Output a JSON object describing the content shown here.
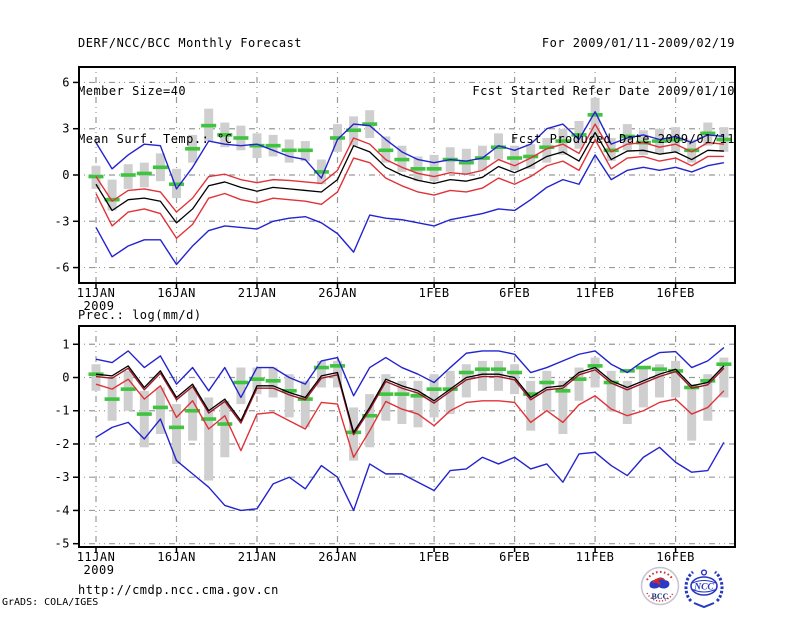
{
  "header": {
    "title": "DERF/NCC/BCC Monthly Forecast",
    "member_size": "Member Size=40",
    "valid_range": "For 2009/01/11-2009/02/19",
    "refer_date": "Fcst Started Refer Date 2009/01/10",
    "produced_date": "Fcst Produced Date 2009/01/11"
  },
  "footer": {
    "url": "http://cmdp.ncc.cma.gov.cn",
    "credit": "GrADS: COLA/IGES",
    "bcc_label": "BCC",
    "ncc_label": "NCC"
  },
  "colors": {
    "blue": "#2323cf",
    "red": "#e03338",
    "maroon": "#a01828",
    "black": "#000000",
    "green": "#3fc43f",
    "bar": "#cfcfcf",
    "grid": "#999999",
    "frame": "#000000"
  },
  "chart_data": [
    {
      "type": "line",
      "title": "Mean Surf. Temp.: °C",
      "x_start_date": "11JAN2009",
      "days": 40,
      "ylim": [
        -7,
        7
      ],
      "grid": true,
      "year_label": "2009",
      "y_ticks": [
        {
          "v": 6,
          "label": "6"
        },
        {
          "v": 3,
          "label": "3"
        },
        {
          "v": 0,
          "label": "0"
        },
        {
          "v": -3,
          "label": "-3"
        },
        {
          "v": -6,
          "label": "-6"
        }
      ],
      "x_ticks": [
        {
          "day": 1,
          "label": "11JAN"
        },
        {
          "day": 6,
          "label": "16JAN"
        },
        {
          "day": 11,
          "label": "21JAN"
        },
        {
          "day": 16,
          "label": "26JAN"
        },
        {
          "day": 22,
          "label": "1FEB"
        },
        {
          "day": 27,
          "label": "6FEB"
        },
        {
          "day": 32,
          "label": "11FEB"
        },
        {
          "day": 37,
          "label": "16FEB"
        }
      ],
      "series": [
        {
          "name": "member-spread-bar",
          "type": "bar",
          "color": "bar",
          "low": [
            -0.9,
            -2.3,
            -0.9,
            -0.8,
            -0.4,
            -1.5,
            0.8,
            2.2,
            1.8,
            1.6,
            1.1,
            1.2,
            0.8,
            0.9,
            -0.6,
            1.5,
            1.9,
            2.4,
            0.8,
            0.2,
            -0.4,
            -0.4,
            0.2,
            0.0,
            0.3,
            1.0,
            0.3,
            0.4,
            0.8,
            1.3,
            1.7,
            2.4,
            0.9,
            1.6,
            1.3,
            1.4,
            1.5,
            0.8,
            1.9,
            1.5
          ],
          "high": [
            0.6,
            -0.3,
            0.7,
            0.8,
            1.4,
            0.4,
            2.6,
            4.3,
            3.4,
            3.2,
            2.7,
            2.6,
            2.3,
            2.2,
            1.0,
            3.3,
            3.8,
            4.2,
            2.5,
            1.9,
            1.2,
            1.3,
            1.8,
            1.7,
            1.9,
            2.7,
            1.9,
            2.0,
            2.4,
            3.0,
            3.5,
            5.0,
            2.4,
            3.3,
            2.9,
            3.0,
            3.1,
            2.3,
            3.4,
            3.1
          ]
        },
        {
          "name": "observation",
          "type": "dash",
          "color": "green",
          "values": [
            -0.1,
            -1.6,
            0.0,
            0.1,
            0.5,
            -0.6,
            1.7,
            3.2,
            2.6,
            2.4,
            1.9,
            1.9,
            1.6,
            1.6,
            0.2,
            2.4,
            2.9,
            3.3,
            1.6,
            1.0,
            0.4,
            0.4,
            1.0,
            0.8,
            1.1,
            1.8,
            1.1,
            1.2,
            1.8,
            2.2,
            2.6,
            3.9,
            1.6,
            2.5,
            2.1,
            2.2,
            2.3,
            1.6,
            2.7,
            2.3
          ]
        },
        {
          "name": "ensemble-max",
          "type": "line",
          "color": "blue",
          "values": [
            2.1,
            0.4,
            1.3,
            2.0,
            1.9,
            -0.9,
            0.5,
            2.2,
            2.0,
            1.9,
            2.0,
            1.6,
            1.2,
            1.0,
            -0.2,
            2.3,
            3.3,
            3.2,
            2.3,
            1.5,
            1.0,
            0.8,
            1.0,
            0.9,
            1.1,
            1.9,
            1.6,
            2.0,
            3.0,
            3.3,
            2.3,
            4.1,
            2.0,
            2.4,
            2.6,
            2.3,
            2.5,
            2.1,
            2.6,
            2.5
          ]
        },
        {
          "name": "ensemble-min",
          "type": "line",
          "color": "blue",
          "values": [
            -3.4,
            -5.3,
            -4.6,
            -4.2,
            -4.2,
            -5.8,
            -4.6,
            -3.6,
            -3.3,
            -3.4,
            -3.5,
            -3.0,
            -2.8,
            -2.7,
            -3.1,
            -3.8,
            -5.0,
            -2.6,
            -2.8,
            -2.9,
            -3.1,
            -3.3,
            -2.9,
            -2.7,
            -2.5,
            -2.2,
            -2.3,
            -1.6,
            -0.8,
            -0.3,
            -0.6,
            1.3,
            -0.3,
            0.3,
            0.5,
            0.3,
            0.5,
            0.2,
            0.6,
            0.8
          ]
        },
        {
          "name": "upper-spread",
          "type": "line",
          "color": "red",
          "values": [
            -0.1,
            -1.7,
            -1.0,
            -0.9,
            -1.1,
            -2.4,
            -1.5,
            -0.1,
            0.05,
            -0.3,
            -0.5,
            -0.3,
            -0.35,
            -0.45,
            -0.55,
            0.3,
            2.4,
            2.0,
            1.0,
            0.5,
            0.1,
            -0.1,
            0.15,
            0.05,
            0.3,
            1.0,
            0.6,
            1.1,
            1.7,
            2.0,
            1.4,
            3.3,
            1.5,
            2.0,
            2.1,
            1.8,
            2.0,
            1.5,
            2.1,
            2.0
          ]
        },
        {
          "name": "lower-spread",
          "type": "line",
          "color": "red",
          "values": [
            -1.2,
            -3.3,
            -2.4,
            -2.2,
            -2.5,
            -4.1,
            -3.2,
            -1.5,
            -1.2,
            -1.6,
            -1.8,
            -1.5,
            -1.6,
            -1.7,
            -1.9,
            -1.1,
            1.1,
            0.8,
            -0.2,
            -0.7,
            -1.1,
            -1.3,
            -1.0,
            -1.1,
            -0.85,
            -0.2,
            -0.6,
            -0.1,
            0.6,
            0.9,
            0.3,
            2.3,
            0.4,
            1.1,
            1.2,
            0.9,
            1.1,
            0.6,
            1.2,
            1.2
          ]
        },
        {
          "name": "ensemble-mean",
          "type": "line",
          "color": "black",
          "values": [
            -0.6,
            -2.3,
            -1.6,
            -1.5,
            -1.7,
            -3.1,
            -2.2,
            -0.7,
            -0.45,
            -0.8,
            -1.05,
            -0.8,
            -0.9,
            -1.0,
            -1.1,
            -0.3,
            1.9,
            1.5,
            0.5,
            0.0,
            -0.35,
            -0.55,
            -0.3,
            -0.4,
            -0.15,
            0.55,
            0.15,
            0.6,
            1.2,
            1.5,
            0.9,
            2.75,
            1.0,
            1.55,
            1.6,
            1.35,
            1.5,
            1.0,
            1.6,
            1.55
          ]
        }
      ]
    },
    {
      "type": "line",
      "title": "Prec.: log(mm/d)",
      "x_start_date": "11JAN2009",
      "days": 40,
      "ylim": [
        -5.1,
        1.55
      ],
      "grid": true,
      "year_label": "2009",
      "y_ticks": [
        {
          "v": 1,
          "label": "1"
        },
        {
          "v": 0,
          "label": "0"
        },
        {
          "v": -1,
          "label": "-1"
        },
        {
          "v": -2,
          "label": "-2"
        },
        {
          "v": -3,
          "label": "-3"
        },
        {
          "v": -4,
          "label": "-4"
        },
        {
          "v": -5,
          "label": "-5"
        }
      ],
      "x_ticks": [
        {
          "day": 1,
          "label": "11JAN"
        },
        {
          "day": 6,
          "label": "16JAN"
        },
        {
          "day": 11,
          "label": "21JAN"
        },
        {
          "day": 16,
          "label": "26JAN"
        },
        {
          "day": 22,
          "label": "1FEB"
        },
        {
          "day": 27,
          "label": "6FEB"
        },
        {
          "day": 32,
          "label": "11FEB"
        },
        {
          "day": 37,
          "label": "16FEB"
        }
      ],
      "series": [
        {
          "name": "member-spread-bar",
          "type": "bar",
          "color": "bar",
          "low": [
            -0.4,
            -1.3,
            -1.0,
            -2.1,
            -1.7,
            -2.6,
            -1.9,
            -3.1,
            -2.4,
            -0.8,
            -0.5,
            -0.6,
            -1.2,
            -1.5,
            -0.3,
            -0.3,
            -2.5,
            -2.1,
            -1.3,
            -1.4,
            -1.5,
            -1.2,
            -1.1,
            -0.6,
            -0.4,
            -0.4,
            -0.5,
            -1.6,
            -1.0,
            -1.7,
            -0.7,
            -0.3,
            -1.0,
            -1.4,
            -0.9,
            -0.6,
            -0.6,
            -1.9,
            -1.3,
            -0.6
          ],
          "high": [
            0.4,
            0.0,
            0.2,
            -0.4,
            -0.3,
            -0.8,
            -0.3,
            -0.6,
            -0.7,
            0.3,
            0.3,
            0.3,
            0.1,
            -0.1,
            0.5,
            0.5,
            -0.9,
            -0.5,
            0.1,
            -0.1,
            -0.1,
            0.1,
            0.2,
            0.4,
            0.5,
            0.5,
            0.4,
            -0.1,
            0.2,
            -0.1,
            0.3,
            0.6,
            0.2,
            -0.1,
            0.3,
            0.4,
            0.5,
            -0.2,
            0.1,
            0.6
          ]
        },
        {
          "name": "observation",
          "type": "dash",
          "color": "green",
          "values": [
            0.1,
            -0.65,
            -0.35,
            -1.1,
            -0.9,
            -1.5,
            -1.0,
            -1.25,
            -1.4,
            -0.15,
            -0.05,
            -0.1,
            -0.4,
            -0.65,
            0.3,
            0.35,
            -1.65,
            -1.15,
            -0.5,
            -0.5,
            -0.55,
            -0.35,
            -0.35,
            0.15,
            0.25,
            0.25,
            0.15,
            -0.5,
            -0.15,
            -0.4,
            -0.05,
            0.35,
            -0.15,
            0.2,
            0.3,
            0.25,
            0.2,
            -0.3,
            -0.1,
            0.4
          ]
        },
        {
          "name": "ensemble-max",
          "type": "line",
          "color": "blue",
          "values": [
            0.55,
            0.45,
            0.8,
            0.3,
            0.65,
            -0.2,
            0.3,
            -0.4,
            0.3,
            -0.6,
            0.3,
            0.3,
            0.0,
            -0.2,
            0.5,
            0.6,
            -0.55,
            0.3,
            0.6,
            0.3,
            0.1,
            -0.15,
            0.3,
            0.73,
            0.8,
            0.8,
            0.7,
            0.15,
            0.3,
            0.5,
            0.7,
            0.8,
            0.4,
            0.15,
            0.5,
            0.75,
            0.78,
            0.3,
            0.5,
            0.9
          ]
        },
        {
          "name": "ensemble-min",
          "type": "line",
          "color": "blue",
          "values": [
            -1.8,
            -1.5,
            -1.35,
            -1.85,
            -1.25,
            -2.5,
            -2.9,
            -3.3,
            -3.85,
            -4.0,
            -3.95,
            -3.2,
            -3.0,
            -3.35,
            -2.65,
            -3.0,
            -4.0,
            -2.6,
            -2.9,
            -2.9,
            -3.15,
            -3.4,
            -2.8,
            -2.75,
            -2.4,
            -2.6,
            -2.4,
            -2.75,
            -2.6,
            -3.15,
            -2.3,
            -2.25,
            -2.65,
            -2.95,
            -2.4,
            -2.1,
            -2.55,
            -2.85,
            -2.8,
            -1.95
          ]
        },
        {
          "name": "lower-spread",
          "type": "line",
          "color": "red",
          "values": [
            -0.2,
            -0.35,
            -0.05,
            -0.65,
            -0.25,
            -1.2,
            -0.7,
            -1.55,
            -1.15,
            -2.2,
            -1.1,
            -1.05,
            -1.3,
            -1.55,
            -0.75,
            -0.8,
            -2.4,
            -1.6,
            -0.72,
            -0.95,
            -1.1,
            -1.45,
            -1.0,
            -0.75,
            -0.7,
            -0.7,
            -0.75,
            -1.35,
            -1.0,
            -1.35,
            -0.82,
            -0.55,
            -0.95,
            -1.15,
            -1.0,
            -0.75,
            -0.65,
            -1.1,
            -0.9,
            -0.4
          ]
        },
        {
          "name": "ensemble-median",
          "type": "line",
          "color": "maroon",
          "values": [
            0.03,
            -0.02,
            0.28,
            -0.37,
            0.13,
            -0.67,
            -0.27,
            -1.07,
            -0.72,
            -1.37,
            -0.32,
            -0.32,
            -0.52,
            -0.67,
            -0.02,
            0.08,
            -1.72,
            -0.97,
            -0.12,
            -0.32,
            -0.47,
            -0.77,
            -0.42,
            -0.07,
            0.03,
            0.03,
            -0.07,
            -0.67,
            -0.37,
            -0.32,
            0.08,
            0.23,
            -0.17,
            -0.37,
            -0.17,
            0.03,
            0.18,
            -0.32,
            -0.22,
            0.28
          ]
        },
        {
          "name": "ensemble-mean",
          "type": "line",
          "color": "black",
          "values": [
            0.1,
            0.05,
            0.35,
            -0.3,
            0.2,
            -0.6,
            -0.2,
            -1.0,
            -0.65,
            -1.3,
            -0.25,
            -0.25,
            -0.45,
            -0.6,
            0.05,
            0.15,
            -1.65,
            -0.9,
            -0.05,
            -0.25,
            -0.4,
            -0.7,
            -0.35,
            0.0,
            0.1,
            0.1,
            0.0,
            -0.6,
            -0.3,
            -0.25,
            0.15,
            0.3,
            -0.1,
            -0.3,
            -0.1,
            0.1,
            0.25,
            -0.25,
            -0.15,
            0.35
          ]
        }
      ]
    }
  ]
}
